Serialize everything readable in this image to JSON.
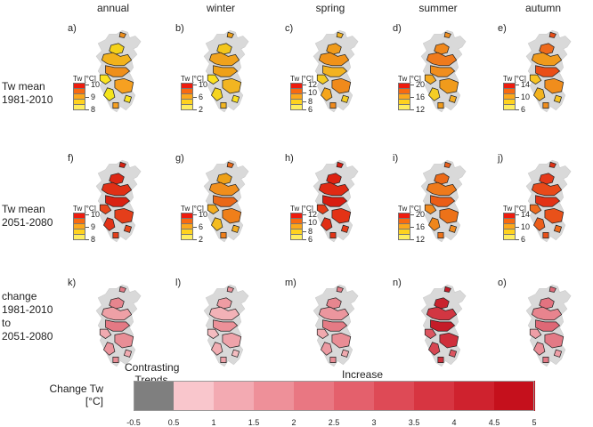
{
  "columns": [
    "annual",
    "winter",
    "spring",
    "summer",
    "autumn"
  ],
  "rows": [
    {
      "label_line1": "Tw mean",
      "label_line2": "1981-2010",
      "label_line3": ""
    },
    {
      "label_line1": "Tw mean",
      "label_line2": "2051-2080",
      "label_line3": ""
    },
    {
      "label_line1": "change",
      "label_line2": "1981-2010",
      "label_line3": "to",
      "label_line4": "2051-2080"
    }
  ],
  "panel_letters": [
    "a)",
    "b)",
    "c)",
    "d)",
    "e)",
    "f)",
    "g)",
    "h)",
    "i)",
    "j)",
    "k)",
    "l)",
    "m)",
    "n)",
    "o)"
  ],
  "mini_legends": [
    {
      "title": "Tw [°C]",
      "ticks": [
        "10",
        "9",
        "8"
      ]
    },
    {
      "title": "Tw [°C]",
      "ticks": [
        "10",
        "6",
        "2"
      ]
    },
    {
      "title": "Tw [°C]",
      "ticks": [
        "12",
        "10",
        "8",
        "6"
      ]
    },
    {
      "title": "Tw [°C]",
      "ticks": [
        "20",
        "16",
        "12"
      ]
    },
    {
      "title": "Tw [°C]",
      "ticks": [
        "14",
        "10",
        "6"
      ]
    }
  ],
  "mini_legend_colors": [
    "#ee1c0e",
    "#f86a10",
    "#fca81b",
    "#ffd21f",
    "#ffee60"
  ],
  "panel_palettes": [
    [
      "#f4d21a",
      "#f2b21c",
      "#ef8f1c",
      "#fbe31f",
      "#f6a021",
      "#f4e41c"
    ],
    [
      "#f3c61d",
      "#f0a21c",
      "#eea018",
      "#fbe01f",
      "#f2b521",
      "#f5d41f"
    ],
    [
      "#ef9b1c",
      "#f09219",
      "#f2b221",
      "#f4cb22",
      "#f08a1c",
      "#f5a51c"
    ],
    [
      "#f0881c",
      "#ef7a1c",
      "#f08e1e",
      "#f5ab20",
      "#f09b1c",
      "#f5cd24"
    ],
    [
      "#ee6a1c",
      "#f09a1c",
      "#ea4e17",
      "#f8c322",
      "#f08d1c",
      "#f3b31e"
    ],
    [
      "#dd2714",
      "#e03016",
      "#d92112",
      "#e8461a",
      "#e43e1a",
      "#e23318"
    ],
    [
      "#eda018",
      "#f08e1c",
      "#ea6818",
      "#f3ac1f",
      "#ef7f1a",
      "#f4bc20"
    ],
    [
      "#dd2212",
      "#e02a14",
      "#d81c10",
      "#e63c18",
      "#e33316",
      "#e12e15"
    ],
    [
      "#ec6a18",
      "#ee7a1c",
      "#ea5d17",
      "#f18a1e",
      "#ed7219",
      "#ef861c"
    ],
    [
      "#e5391a",
      "#e84a1a",
      "#e23216",
      "#ee6a1c",
      "#e9511a",
      "#ec5e1b"
    ],
    [
      "#e6858e",
      "#eea0a6",
      "#e47984",
      "#f0aab0",
      "#e88e96",
      "#eb959d"
    ],
    [
      "#ee9ca3",
      "#f2b2b7",
      "#ec9199",
      "#f4bcc0",
      "#eea3aa",
      "#f1adb2"
    ],
    [
      "#e7868f",
      "#eb969e",
      "#e47b85",
      "#f0a9ae",
      "#e98d95",
      "#ec9aa2"
    ],
    [
      "#c9232e",
      "#d13642",
      "#c41c28",
      "#dc5560",
      "#cf2f3b",
      "#d64652"
    ],
    [
      "#e27380",
      "#e8848e",
      "#de6876",
      "#ee9ea6",
      "#e37a86",
      "#e98d96"
    ]
  ],
  "bottom_legend": {
    "title_line1": "Change Tw",
    "title_line2": "[°C]",
    "contrasting_line1": "Contrasting",
    "contrasting_line2": "Trends",
    "increase_label": "Increase",
    "ticks": [
      "-0.5",
      "0.5",
      "1",
      "1.5",
      "2",
      "2.5",
      "3",
      "3.5",
      "4",
      "4.5",
      "5"
    ],
    "contrasting_color": "#7f7f7f",
    "increase_colors": [
      "#f9c6cc",
      "#f3aab2",
      "#ee9099",
      "#e97782",
      "#e4606c",
      "#de4a56",
      "#d73541",
      "#cf222e",
      "#c5101c"
    ]
  }
}
